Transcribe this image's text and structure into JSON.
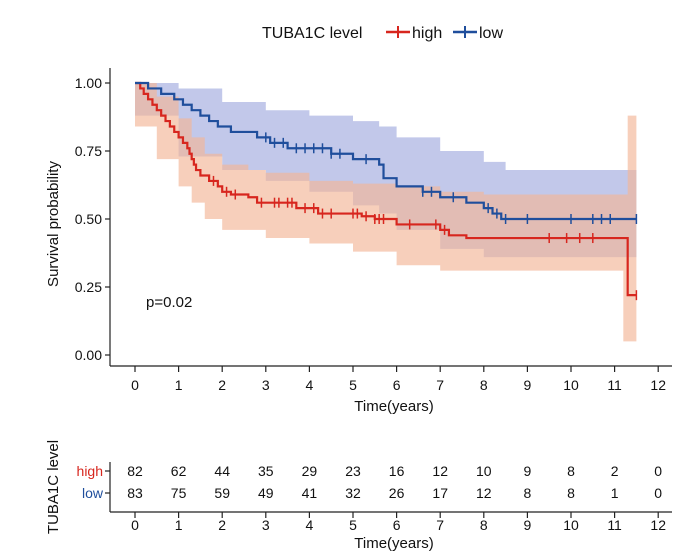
{
  "chart_data": {
    "type": "kaplan-meier",
    "title": "",
    "xlabel": "Time(years)",
    "ylabel": "Survival probability",
    "xlim": [
      -0.6,
      12.2
    ],
    "ylim": [
      0,
      1
    ],
    "x_ticks": [
      "0",
      "1",
      "2",
      "3",
      "4",
      "5",
      "6",
      "7",
      "8",
      "9",
      "10",
      "11",
      "12"
    ],
    "y_ticks": [
      "0.00",
      "0.25",
      "0.50",
      "0.75",
      "1.00"
    ],
    "legend": {
      "title": "TUBA1C level",
      "position": "top",
      "entries": [
        "high",
        "low"
      ]
    },
    "annotation": "p=0.02",
    "colors": {
      "high": "#d7261e",
      "low": "#1f4e9c",
      "high_fill": "#f2b596",
      "low_fill": "#9aa3dc"
    },
    "series": [
      {
        "name": "high",
        "steps": [
          [
            0,
            1.0
          ],
          [
            0.12,
            0.98
          ],
          [
            0.2,
            0.96
          ],
          [
            0.3,
            0.94
          ],
          [
            0.4,
            0.92
          ],
          [
            0.5,
            0.9
          ],
          [
            0.6,
            0.88
          ],
          [
            0.7,
            0.86
          ],
          [
            0.8,
            0.84
          ],
          [
            0.9,
            0.82
          ],
          [
            1.0,
            0.8
          ],
          [
            1.1,
            0.78
          ],
          [
            1.2,
            0.76
          ],
          [
            1.25,
            0.74
          ],
          [
            1.3,
            0.72
          ],
          [
            1.35,
            0.7
          ],
          [
            1.4,
            0.68
          ],
          [
            1.5,
            0.66
          ],
          [
            1.7,
            0.64
          ],
          [
            1.9,
            0.62
          ],
          [
            2.0,
            0.6
          ],
          [
            2.2,
            0.59
          ],
          [
            2.6,
            0.58
          ],
          [
            2.8,
            0.56
          ],
          [
            3.7,
            0.54
          ],
          [
            4.2,
            0.52
          ],
          [
            5.2,
            0.51
          ],
          [
            5.5,
            0.5
          ],
          [
            6.0,
            0.48
          ],
          [
            7.0,
            0.46
          ],
          [
            7.2,
            0.44
          ],
          [
            7.6,
            0.43
          ],
          [
            11.3,
            0.22
          ]
        ],
        "end": 11.5,
        "upper": [
          [
            0,
            1.0
          ],
          [
            0.5,
            0.95
          ],
          [
            1.0,
            0.87
          ],
          [
            1.3,
            0.8
          ],
          [
            1.6,
            0.74
          ],
          [
            2.0,
            0.7
          ],
          [
            2.6,
            0.68
          ],
          [
            3.0,
            0.67
          ],
          [
            4.0,
            0.64
          ],
          [
            5.0,
            0.63
          ],
          [
            6.0,
            0.62
          ],
          [
            7.0,
            0.6
          ],
          [
            8.0,
            0.59
          ],
          [
            11.2,
            0.59
          ],
          [
            11.3,
            0.88
          ],
          [
            11.5,
            0.88
          ]
        ],
        "lower": [
          [
            0,
            1.0
          ],
          [
            0.5,
            0.84
          ],
          [
            1.0,
            0.72
          ],
          [
            1.3,
            0.62
          ],
          [
            1.6,
            0.56
          ],
          [
            2.0,
            0.5
          ],
          [
            3.0,
            0.46
          ],
          [
            4.0,
            0.43
          ],
          [
            5.0,
            0.41
          ],
          [
            6.0,
            0.38
          ],
          [
            7.0,
            0.33
          ],
          [
            8.0,
            0.31
          ],
          [
            11.2,
            0.31
          ],
          [
            11.3,
            0.05
          ],
          [
            11.5,
            0.05
          ]
        ],
        "censor_x": [
          1.8,
          2.1,
          2.3,
          2.9,
          3.2,
          3.3,
          3.5,
          3.6,
          3.9,
          4.1,
          4.3,
          4.5,
          5.0,
          5.1,
          5.3,
          5.5,
          5.6,
          5.7,
          6.3,
          6.9,
          7.1,
          9.5,
          9.9,
          10.2,
          10.5,
          11.5
        ]
      },
      {
        "name": "low",
        "steps": [
          [
            0,
            1.0
          ],
          [
            0.3,
            0.98
          ],
          [
            0.6,
            0.96
          ],
          [
            0.9,
            0.94
          ],
          [
            1.1,
            0.92
          ],
          [
            1.3,
            0.9
          ],
          [
            1.5,
            0.88
          ],
          [
            1.7,
            0.86
          ],
          [
            1.9,
            0.84
          ],
          [
            2.2,
            0.82
          ],
          [
            2.8,
            0.8
          ],
          [
            3.1,
            0.78
          ],
          [
            3.5,
            0.76
          ],
          [
            4.5,
            0.74
          ],
          [
            5.0,
            0.72
          ],
          [
            5.6,
            0.7
          ],
          [
            5.7,
            0.65
          ],
          [
            6.0,
            0.62
          ],
          [
            6.6,
            0.6
          ],
          [
            7.0,
            0.58
          ],
          [
            7.6,
            0.56
          ],
          [
            8.0,
            0.54
          ],
          [
            8.2,
            0.52
          ],
          [
            8.4,
            0.5
          ]
        ],
        "end": 11.5,
        "upper": [
          [
            0,
            1.0
          ],
          [
            1.0,
            0.98
          ],
          [
            2.0,
            0.93
          ],
          [
            3.0,
            0.9
          ],
          [
            4.0,
            0.88
          ],
          [
            5.0,
            0.86
          ],
          [
            5.6,
            0.84
          ],
          [
            6.0,
            0.8
          ],
          [
            7.0,
            0.75
          ],
          [
            8.0,
            0.71
          ],
          [
            8.5,
            0.68
          ],
          [
            11.5,
            0.68
          ]
        ],
        "lower": [
          [
            0,
            1.0
          ],
          [
            1.0,
            0.88
          ],
          [
            2.0,
            0.73
          ],
          [
            3.0,
            0.68
          ],
          [
            4.0,
            0.64
          ],
          [
            5.0,
            0.6
          ],
          [
            5.6,
            0.55
          ],
          [
            6.0,
            0.52
          ],
          [
            7.0,
            0.46
          ],
          [
            8.0,
            0.39
          ],
          [
            8.5,
            0.36
          ],
          [
            11.5,
            0.36
          ]
        ],
        "censor_x": [
          3.0,
          3.2,
          3.4,
          3.7,
          3.9,
          4.1,
          4.3,
          4.5,
          4.7,
          5.3,
          6.6,
          6.8,
          7.3,
          8.1,
          8.3,
          8.5,
          9.0,
          10.0,
          10.5,
          10.7,
          10.9,
          11.5
        ]
      }
    ],
    "risk_table": {
      "ylabel": "TUBA1C level",
      "xlabel": "Time(years)",
      "times": [
        "0",
        "1",
        "2",
        "3",
        "4",
        "5",
        "6",
        "7",
        "8",
        "9",
        "10",
        "11",
        "12"
      ],
      "rows": [
        {
          "label": "high",
          "values": [
            "82",
            "62",
            "44",
            "35",
            "29",
            "23",
            "16",
            "12",
            "10",
            "9",
            "8",
            "2",
            "0"
          ]
        },
        {
          "label": "low",
          "values": [
            "83",
            "75",
            "59",
            "49",
            "41",
            "32",
            "26",
            "17",
            "12",
            "8",
            "8",
            "1",
            "0"
          ]
        }
      ]
    }
  }
}
